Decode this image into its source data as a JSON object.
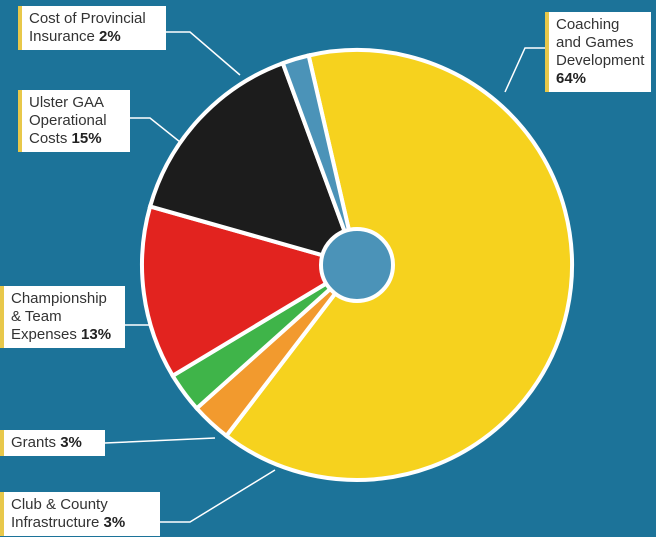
{
  "chart_data": {
    "type": "pie",
    "categories": [
      "Coaching and Games Development",
      "Club & County Infrastructure",
      "Grants",
      "Championship & Team Expenses",
      "Ulster GAA Operational Costs",
      "Cost of Provincial Insurance"
    ],
    "values": [
      64,
      3,
      3,
      13,
      15,
      2
    ],
    "value_labels": [
      "64%",
      "3%",
      "3%",
      "13%",
      "15%",
      "2%"
    ],
    "colors": [
      "#f6d21e",
      "#f29a2e",
      "#3fb449",
      "#e2231f",
      "#1c1c1c",
      "#4b93b8"
    ]
  }
}
